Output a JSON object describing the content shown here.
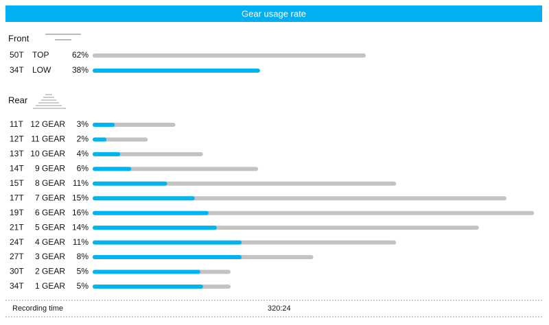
{
  "header": {
    "title": "Gear usage rate"
  },
  "front": {
    "label": "Front",
    "rows": [
      {
        "cog": "50T",
        "name": "TOP",
        "percent": 62,
        "percent_label": "62%"
      },
      {
        "cog": "34T",
        "name": "LOW",
        "percent": 38,
        "percent_label": "38%"
      }
    ]
  },
  "rear": {
    "label": "Rear",
    "rows": [
      {
        "cog": "11T",
        "name": "12 GEAR",
        "percent": 3,
        "percent_label": "3%",
        "highlight": 0.8
      },
      {
        "cog": "12T",
        "name": "11 GEAR",
        "percent": 2,
        "percent_label": "2%",
        "highlight": 0.5
      },
      {
        "cog": "13T",
        "name": "10 GEAR",
        "percent": 4,
        "percent_label": "4%",
        "highlight": 1.0
      },
      {
        "cog": "14T",
        "name": "9 GEAR",
        "percent": 6,
        "percent_label": "6%",
        "highlight": 1.4
      },
      {
        "cog": "15T",
        "name": "8 GEAR",
        "percent": 11,
        "percent_label": "11%",
        "highlight": 2.7
      },
      {
        "cog": "17T",
        "name": "7 GEAR",
        "percent": 15,
        "percent_label": "15%",
        "highlight": 3.7
      },
      {
        "cog": "19T",
        "name": "6 GEAR",
        "percent": 16,
        "percent_label": "16%",
        "highlight": 4.2
      },
      {
        "cog": "21T",
        "name": "5 GEAR",
        "percent": 14,
        "percent_label": "14%",
        "highlight": 4.5
      },
      {
        "cog": "24T",
        "name": "4 GEAR",
        "percent": 11,
        "percent_label": "11%",
        "highlight": 5.4
      },
      {
        "cog": "27T",
        "name": "3 GEAR",
        "percent": 8,
        "percent_label": "8%",
        "highlight": 5.4
      },
      {
        "cog": "30T",
        "name": "2 GEAR",
        "percent": 5,
        "percent_label": "5%",
        "highlight": 3.9
      },
      {
        "cog": "34T",
        "name": "1 GEAR",
        "percent": 5,
        "percent_label": "5%",
        "highlight": 4.0
      }
    ]
  },
  "footer": {
    "label": "Recording time",
    "value": "320:24"
  }
}
